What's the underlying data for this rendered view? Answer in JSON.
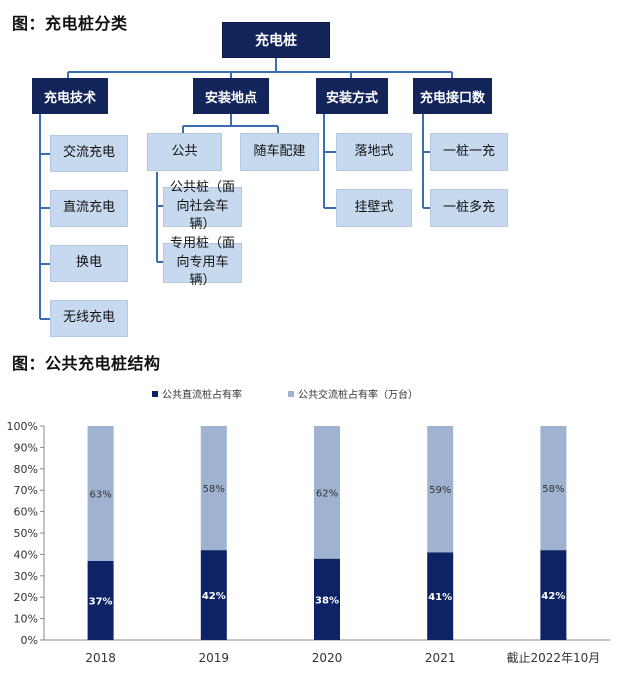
{
  "section1_title": "图：充电桩分类",
  "tree": {
    "root": "充电桩",
    "categories": [
      {
        "label": "充电技术",
        "children": [
          "交流充电",
          "直流充电",
          "换电",
          "无线充电"
        ]
      },
      {
        "label": "安装地点",
        "children": [
          "公共",
          "随车配建"
        ],
        "subchildren": [
          "公共桩（面向社会车辆）",
          "专用桩（面向专用车辆）"
        ]
      },
      {
        "label": "安装方式",
        "children": [
          "落地式",
          "挂壁式"
        ]
      },
      {
        "label": "充电接口数",
        "children": [
          "一桩一充",
          "一桩多充"
        ]
      }
    ]
  },
  "section2_title": "图：公共充电桩结构",
  "colors": {
    "dc": "#0d2366",
    "ac": "#9fb3d1",
    "node_dark": "#13245a",
    "node_light": "#c7d9ee",
    "line": "#3a6db5"
  },
  "chart_data": {
    "type": "bar",
    "stacked": true,
    "percent": true,
    "categories": [
      "2018",
      "2019",
      "2020",
      "2021",
      "截止2022年10月"
    ],
    "series": [
      {
        "name": "公共直流桩占有率",
        "values": [
          37,
          42,
          38,
          41,
          42
        ],
        "labels": [
          "37%",
          "42%",
          "38%",
          "41%",
          "42%"
        ]
      },
      {
        "name": "公共交流桩占有率（万台）",
        "values": [
          63,
          58,
          62,
          59,
          58
        ],
        "labels": [
          "63%",
          "58%",
          "62%",
          "59%",
          "58%"
        ]
      }
    ],
    "ylim": [
      0,
      100
    ],
    "yticks": [
      "0%",
      "10%",
      "20%",
      "30%",
      "40%",
      "50%",
      "60%",
      "70%",
      "80%",
      "90%",
      "100%"
    ],
    "legend": "top-center",
    "grid": false
  }
}
